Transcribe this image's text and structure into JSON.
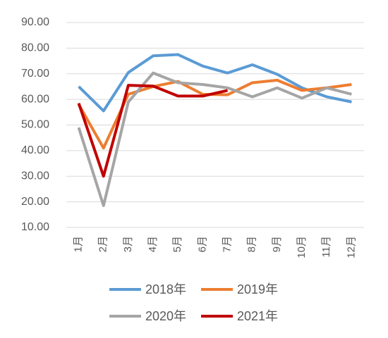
{
  "chart_data": {
    "type": "line",
    "categories": [
      "1月",
      "2月",
      "3月",
      "4月",
      "5月",
      "6月",
      "7月",
      "8月",
      "9月",
      "10月",
      "11月",
      "12月"
    ],
    "series": [
      {
        "name": "2018年",
        "color": "#5b9bd5",
        "values": [
          65,
          55.5,
          70.5,
          77,
          77.5,
          73,
          70.3,
          73.5,
          69.8,
          64.5,
          61,
          59
        ]
      },
      {
        "name": "2019年",
        "color": "#ed7d31",
        "values": [
          58,
          41,
          62,
          65,
          67,
          62,
          61.8,
          66.5,
          67.5,
          63.5,
          64.5,
          65.8
        ]
      },
      {
        "name": "2020年",
        "color": "#a5a5a5",
        "values": [
          49,
          18.5,
          59,
          70.3,
          66.5,
          65.8,
          64.5,
          61,
          64.5,
          60.5,
          64.5,
          62
        ]
      },
      {
        "name": "2021年",
        "color": "#c00000",
        "values": [
          58.5,
          30,
          65.5,
          65.2,
          61.3,
          61.3,
          63.5,
          null,
          null,
          null,
          null,
          null
        ]
      }
    ],
    "ylim": [
      10,
      90
    ],
    "yticks": [
      {
        "value": 10,
        "label": "10.00"
      },
      {
        "value": 20,
        "label": "20.00"
      },
      {
        "value": 30,
        "label": "30.00"
      },
      {
        "value": 40,
        "label": "40.00"
      },
      {
        "value": 50,
        "label": "50.00"
      },
      {
        "value": 60,
        "label": "60.00"
      },
      {
        "value": 70,
        "label": "70.00"
      },
      {
        "value": 80,
        "label": "80.00"
      },
      {
        "value": 90,
        "label": "90.00"
      }
    ],
    "grid": true
  }
}
